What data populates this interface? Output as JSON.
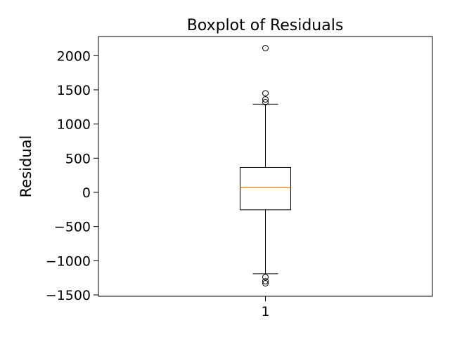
{
  "chart_data": {
    "type": "box",
    "title": "Boxplot of Residuals",
    "xlabel": "",
    "ylabel": "Residual",
    "ylim": [
      -1520,
      2280
    ],
    "yticks": [
      2000,
      1500,
      1000,
      500,
      0,
      -500,
      -1000,
      -1500
    ],
    "ytick_labels": [
      "2000",
      "1500",
      "1000",
      "500",
      "0",
      "−500",
      "−1000",
      "−1500"
    ],
    "categories": [
      "1"
    ],
    "boxes": [
      {
        "category": "1",
        "whisker_low": -1190,
        "q1": -255,
        "median": 70,
        "q3": 365,
        "whisker_high": 1290,
        "outliers_high": [
          2110,
          1450,
          1360,
          1320
        ],
        "outliers_low": [
          -1240,
          -1300,
          -1330
        ]
      }
    ],
    "colors": {
      "box": "#000000",
      "median": "#ff7f0e",
      "axes": "#000000",
      "background": "#ffffff"
    },
    "grid": false,
    "legend": "none"
  }
}
